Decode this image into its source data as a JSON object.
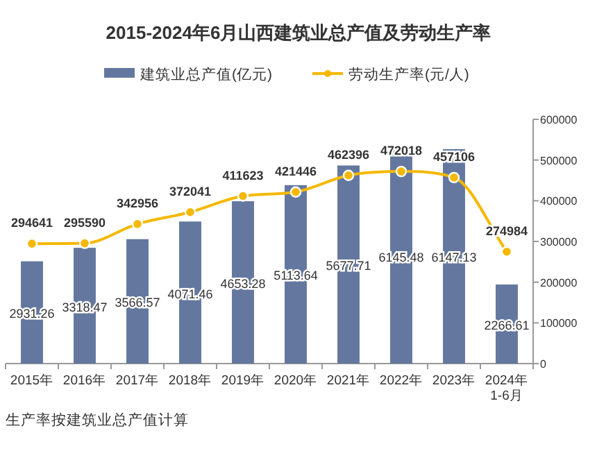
{
  "chart_data": {
    "type": "bar",
    "title": "2015-2024年6月山西建筑业总产值及劳动生产率",
    "categories": [
      "2015年",
      "2016年",
      "2017年",
      "2018年",
      "2019年",
      "2020年",
      "2021年",
      "2022年",
      "2023年",
      "2024年\n1-6月"
    ],
    "series": [
      {
        "name": "建筑业总产值(亿元)",
        "type": "bar",
        "color": "#64789f",
        "values": [
          2931.26,
          3318.47,
          3566.57,
          4071.46,
          4653.28,
          5113.64,
          5677.71,
          6145.48,
          6147.13,
          2266.61
        ]
      },
      {
        "name": "劳动生产率(元/人)",
        "type": "line",
        "axis": "y2",
        "color": "#f5b800",
        "marker": "circle",
        "values": [
          294641,
          295590,
          342956,
          372041,
          411623,
          421446,
          462396,
          472018,
          457106,
          274984
        ]
      }
    ],
    "ylim": [
      0,
      7000
    ],
    "y2lim": [
      0,
      600000
    ],
    "y2ticks": [
      0,
      100000,
      200000,
      300000,
      400000,
      500000,
      600000
    ],
    "data_labels": true,
    "legend": "top",
    "annotations": [
      "生产率按建筑业总产值计算"
    ]
  }
}
